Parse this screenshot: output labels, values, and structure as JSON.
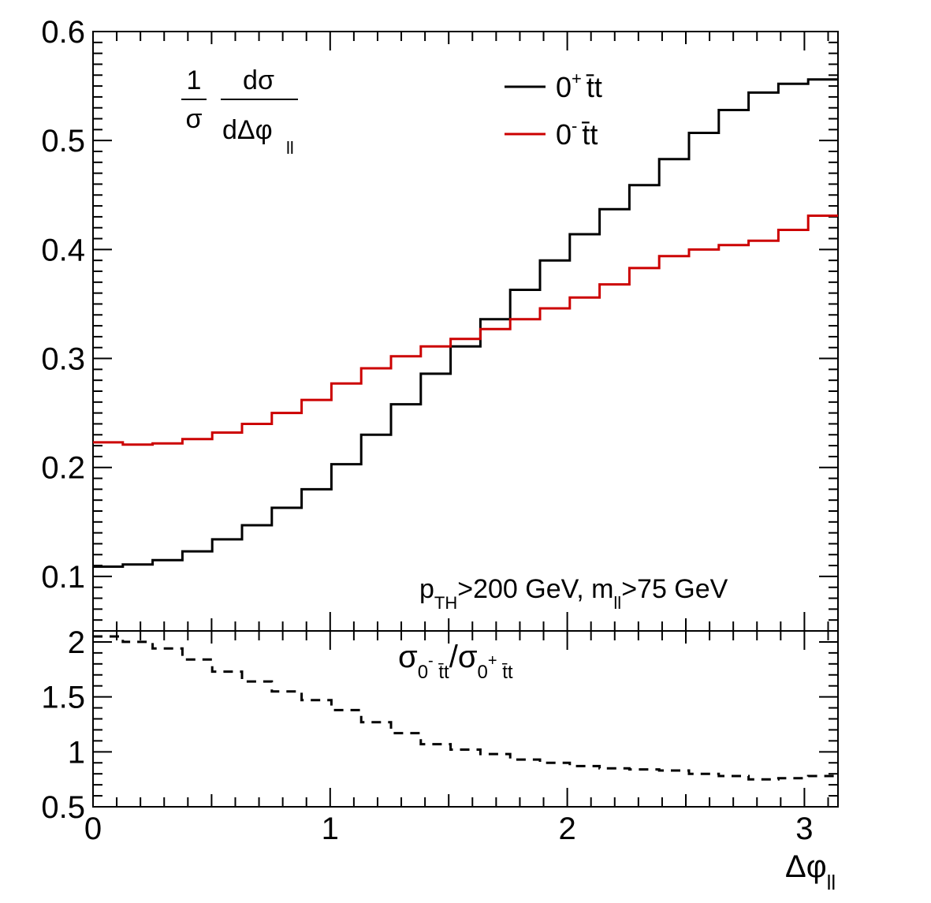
{
  "chart_data": [
    {
      "panel": "main",
      "type": "line",
      "step": true,
      "ylabel_fraction": {
        "numerator": "1",
        "denominator": "σ",
        "num2": "dσ",
        "den2": "dΔφ",
        "den2_sub": "ll"
      },
      "annotation": {
        "main": "p",
        "sub1": "TH",
        "rest1": ">200 GeV, m",
        "sub2": "ll",
        "rest2": ">75 GeV"
      },
      "xlim": [
        0,
        3.14159
      ],
      "ylim": [
        0.05,
        0.6
      ],
      "yticks": [
        "0.1",
        "0.2",
        "0.3",
        "0.4",
        "0.5",
        "0.6"
      ],
      "legend_position": "top-right",
      "x_edges": [
        0,
        0.1257,
        0.2513,
        0.377,
        0.5027,
        0.6283,
        0.754,
        0.8796,
        1.0053,
        1.131,
        1.2566,
        1.3823,
        1.508,
        1.6336,
        1.7593,
        1.885,
        2.0106,
        2.1363,
        2.2619,
        2.3876,
        2.5133,
        2.6389,
        2.7646,
        2.8903,
        3.0159,
        3.1416
      ],
      "series": [
        {
          "name": "0⁺ t̄t",
          "label_main": "0",
          "label_sup": "+",
          "label_rest": "t̄t",
          "color": "#000000",
          "values": [
            0.109,
            0.111,
            0.115,
            0.123,
            0.134,
            0.147,
            0.163,
            0.18,
            0.203,
            0.23,
            0.258,
            0.286,
            0.311,
            0.336,
            0.363,
            0.39,
            0.414,
            0.437,
            0.459,
            0.483,
            0.507,
            0.528,
            0.544,
            0.552,
            0.556
          ]
        },
        {
          "name": "0⁻ t̄t",
          "label_main": "0",
          "label_sup": "-",
          "label_rest": "t̄t",
          "color": "#cc0000",
          "values": [
            0.223,
            0.221,
            0.222,
            0.226,
            0.232,
            0.24,
            0.25,
            0.262,
            0.277,
            0.291,
            0.302,
            0.311,
            0.318,
            0.327,
            0.336,
            0.346,
            0.356,
            0.368,
            0.383,
            0.394,
            0.4,
            0.404,
            0.408,
            0.418,
            0.431
          ]
        }
      ]
    },
    {
      "panel": "ratio",
      "type": "line",
      "step": true,
      "linestyle": "dashed",
      "title": {
        "sigma": "σ",
        "sub1": "0",
        "sup1": "-",
        "sub1b": " t̄t",
        "slash": "/",
        "sigma2": "σ",
        "sub2": "0",
        "sup2": "+",
        "sub2b": " t̄t"
      },
      "xlabel": "Δφ",
      "xlabel_sub": "ll",
      "xlim": [
        0,
        3.14159
      ],
      "ylim": [
        0.5,
        2.1
      ],
      "xticks": [
        "0",
        "1",
        "2",
        "3"
      ],
      "yticks": [
        "0.5",
        "1",
        "1.5",
        "2"
      ],
      "series": [
        {
          "name": "",
          "color": "#000000",
          "values": [
            2.05,
            2.0,
            1.94,
            1.84,
            1.73,
            1.64,
            1.55,
            1.47,
            1.38,
            1.27,
            1.17,
            1.07,
            1.02,
            0.98,
            0.93,
            0.9,
            0.87,
            0.85,
            0.84,
            0.83,
            0.8,
            0.78,
            0.75,
            0.76,
            0.78
          ]
        }
      ]
    }
  ]
}
